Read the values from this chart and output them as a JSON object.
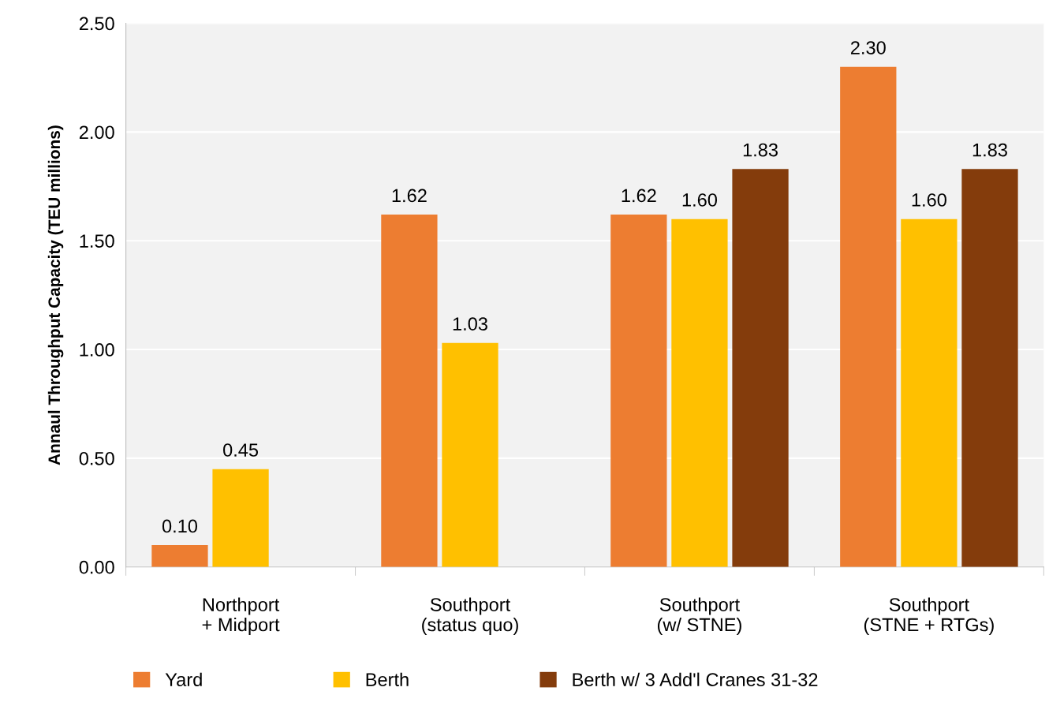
{
  "chart_data": {
    "type": "bar",
    "ylabel": "Annaul Throughput Capacity (TEU millions)",
    "categories": [
      "Northport\n+ Midport",
      "Southport\n(status quo)",
      "Southport\n(w/ STNE)",
      "Southport\n(STNE + RTGs)"
    ],
    "series": [
      {
        "name": "Yard",
        "color": "#ed7d31",
        "values": [
          0.1,
          1.62,
          1.62,
          2.3
        ],
        "value_labels": [
          "0.10",
          "1.62",
          "1.62",
          "2.30"
        ]
      },
      {
        "name": "Berth",
        "color": "#ffc000",
        "values": [
          0.45,
          1.03,
          1.6,
          1.6
        ],
        "value_labels": [
          "0.45",
          "1.03",
          "1.60",
          "1.60"
        ]
      },
      {
        "name": "Berth w/ 3 Add'l Cranes 31-32",
        "color": "#843c0c",
        "values": [
          null,
          null,
          1.83,
          1.83
        ],
        "value_labels": [
          null,
          null,
          "1.83",
          "1.83"
        ]
      }
    ],
    "ylim": [
      0,
      2.5
    ],
    "yticks": [
      {
        "value": 0,
        "label": "0.00"
      },
      {
        "value": 0.5,
        "label": "0.50"
      },
      {
        "value": 1,
        "label": "1.00"
      },
      {
        "value": 1.5,
        "label": "1.50"
      },
      {
        "value": 2,
        "label": "2.00"
      },
      {
        "value": 2.5,
        "label": "2.50"
      }
    ],
    "grid": "y",
    "legend": "bottom"
  }
}
